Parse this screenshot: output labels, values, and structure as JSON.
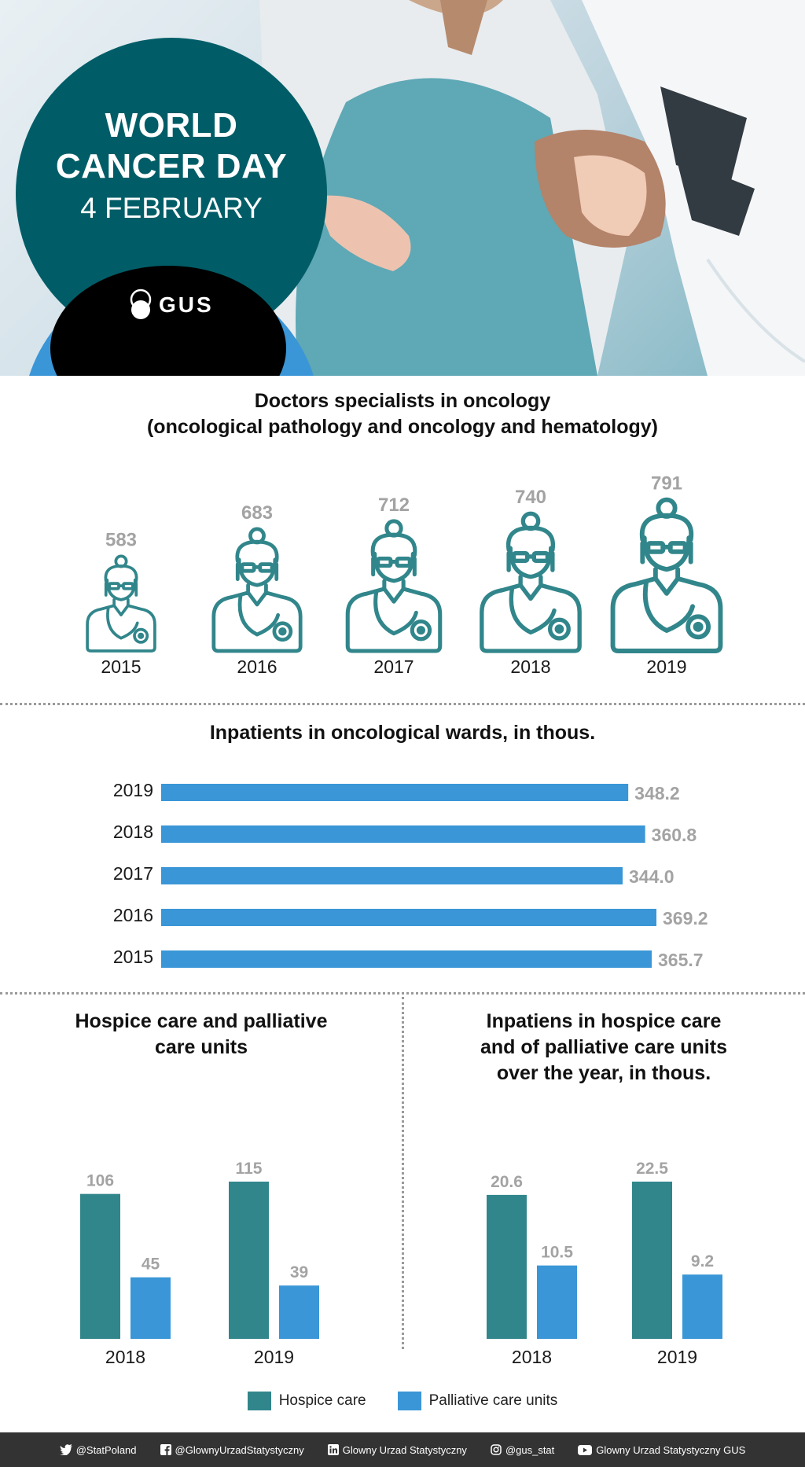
{
  "header": {
    "title_line1": "WORLD",
    "title_line2": "CANCER DAY",
    "date": "4 FEBRUARY",
    "logo_text": "GUS"
  },
  "colors": {
    "teal": "#31868b",
    "blue": "#3a96d6",
    "dark_teal": "#005d67",
    "value_gray": "#a3a3a3"
  },
  "doctors": {
    "title_line1": "Doctors specialists in oncology",
    "title_line2": "(oncological pathology and oncology and hematology)"
  },
  "inpatients": {
    "title": "Inpatients in oncological wards, in thous."
  },
  "hospice": {
    "title_line1": "Hospice care and palliative",
    "title_line2": "care units"
  },
  "inpatients_hospice": {
    "title_line1": "Inpatiens in hospice care",
    "title_line2": "and of palliative care units",
    "title_line3": "over the year, in thous."
  },
  "legend": {
    "hospice": "Hospice care",
    "palliative": "Palliative care units"
  },
  "footer": {
    "twitter": "@StatPoland",
    "facebook": "@GlownyUrzadStatystyczny",
    "linkedin": "Glowny Urzad Statystyczny",
    "instagram": "@gus_stat",
    "youtube": "Glowny Urzad Statystyczny GUS"
  },
  "chart_data": [
    {
      "type": "pictogram",
      "title": "Doctors specialists in oncology (oncological pathology and oncology and hematology)",
      "categories": [
        "2015",
        "2016",
        "2017",
        "2018",
        "2019"
      ],
      "values": [
        583,
        683,
        712,
        740,
        791
      ],
      "labels": [
        "583",
        "683",
        "712",
        "740",
        "791"
      ],
      "icon": "doctor-icon"
    },
    {
      "type": "bar",
      "orientation": "horizontal",
      "title": "Inpatients in oncological wards, in thous.",
      "categories": [
        "2019",
        "2018",
        "2017",
        "2016",
        "2015"
      ],
      "values": [
        348.2,
        360.8,
        344.0,
        369.2,
        365.7
      ],
      "labels": [
        "348.2",
        "360.8",
        "344.0",
        "369.2",
        "365.7"
      ],
      "xlim": [
        0,
        369.2
      ]
    },
    {
      "type": "bar",
      "title": "Hospice care and palliative care units",
      "categories": [
        "2018",
        "2019"
      ],
      "series": [
        {
          "name": "Hospice care",
          "values": [
            106,
            115
          ],
          "labels": [
            "106",
            "115"
          ]
        },
        {
          "name": "Palliative care units",
          "values": [
            45,
            39
          ],
          "labels": [
            "45",
            "39"
          ]
        }
      ],
      "ylim": [
        0,
        115
      ]
    },
    {
      "type": "bar",
      "title": "Inpatiens in hospice care and of palliative care units over the year, in thous.",
      "categories": [
        "2018",
        "2019"
      ],
      "series": [
        {
          "name": "Hospice care",
          "values": [
            20.6,
            22.5
          ],
          "labels": [
            "20.6",
            "22.5"
          ]
        },
        {
          "name": "Palliative care units",
          "values": [
            10.5,
            9.2
          ],
          "labels": [
            "10.5",
            "9.2"
          ]
        }
      ],
      "ylim": [
        0,
        22.5
      ],
      "legend": "bottom"
    }
  ]
}
